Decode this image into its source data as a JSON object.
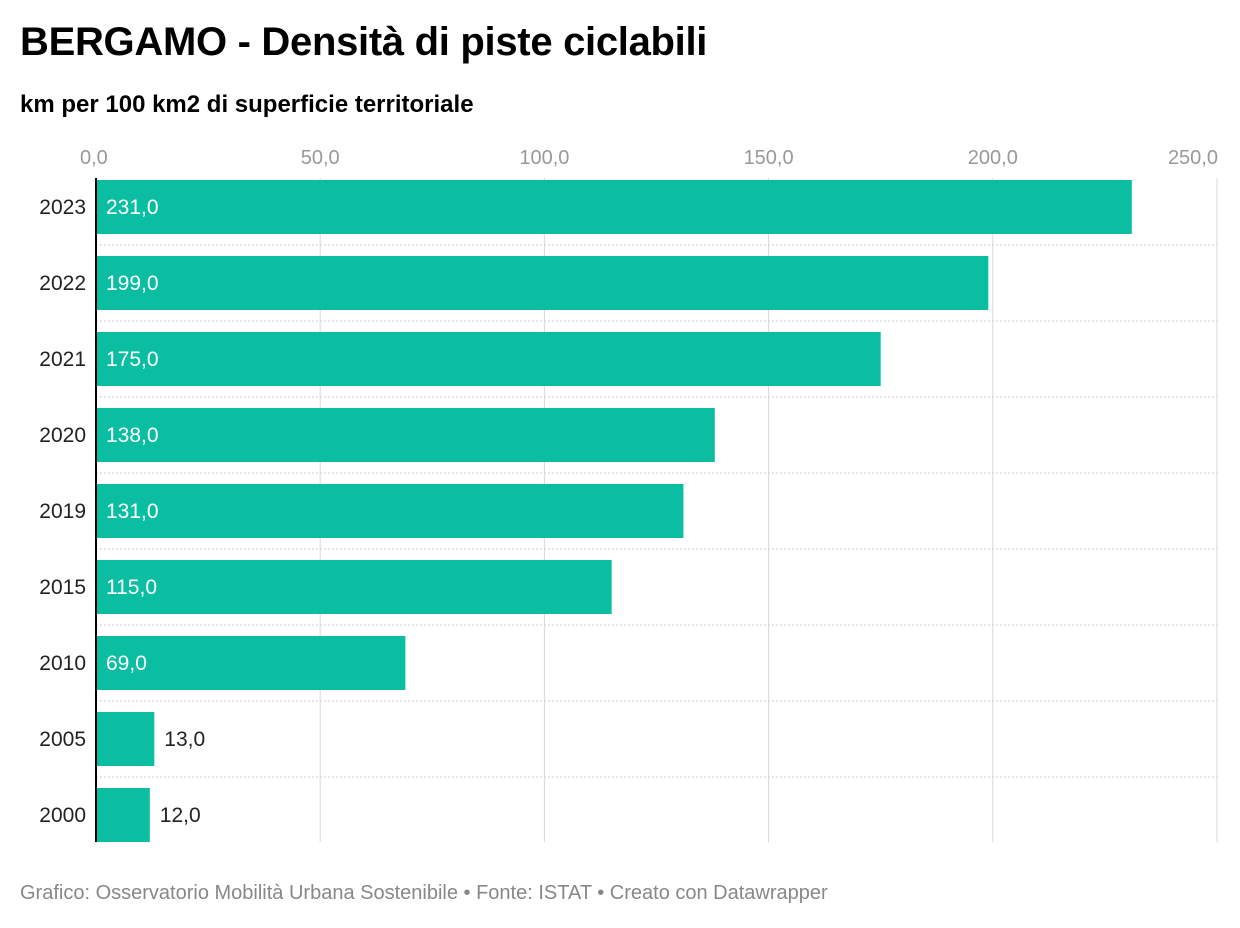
{
  "title": "BERGAMO - Densità di piste ciclabili",
  "subtitle": "km per 100 km2 di superficie territoriale",
  "footer": "Grafico: Osservatorio Mobilità Urbana Sostenibile • Fonte: ISTAT • Creato con Datawrapper",
  "colors": {
    "bar": "#0bbea1",
    "label_inside": "#ffffff",
    "label_outside": "#222222"
  },
  "chart_data": {
    "type": "bar",
    "orientation": "horizontal",
    "categories": [
      "2023",
      "2022",
      "2021",
      "2020",
      "2019",
      "2015",
      "2010",
      "2005",
      "2000"
    ],
    "values": [
      231.0,
      199.0,
      175.0,
      138.0,
      131.0,
      115.0,
      69.0,
      13.0,
      12.0
    ],
    "value_labels": [
      "231,0",
      "199,0",
      "175,0",
      "138,0",
      "131,0",
      "115,0",
      "69,0",
      "13,0",
      "12,0"
    ],
    "x_ticks": [
      0,
      50,
      100,
      150,
      200,
      250
    ],
    "x_tick_labels": [
      "0,0",
      "50,0",
      "100,0",
      "150,0",
      "200,0",
      "250,0"
    ],
    "xlim": [
      0,
      250
    ],
    "x_axis_position": "top",
    "grid": true
  }
}
